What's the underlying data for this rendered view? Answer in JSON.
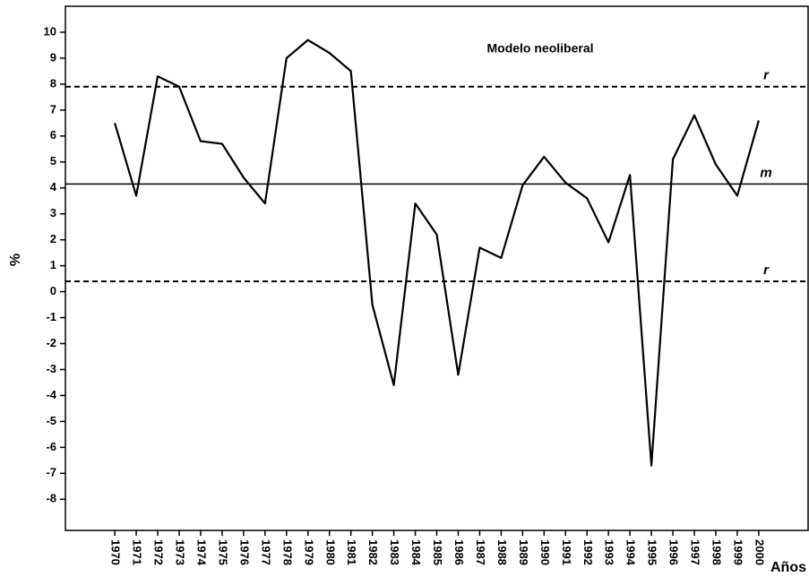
{
  "chart_data": {
    "type": "line",
    "title": "Modelo neoliberal",
    "ylabel": "%",
    "xlabel": "Años",
    "x": [
      1970,
      1971,
      1972,
      1973,
      1974,
      1975,
      1976,
      1977,
      1978,
      1979,
      1980,
      1981,
      1982,
      1983,
      1984,
      1985,
      1986,
      1987,
      1988,
      1989,
      1990,
      1991,
      1992,
      1993,
      1994,
      1995,
      1996,
      1997,
      1998,
      1999,
      2000
    ],
    "series": [
      {
        "color": "#000000",
        "values": [
          6.5,
          3.7,
          8.3,
          7.9,
          5.8,
          5.7,
          4.4,
          3.4,
          9.0,
          9.7,
          9.2,
          8.5,
          -0.5,
          -3.6,
          3.4,
          2.2,
          -3.2,
          1.7,
          1.3,
          4.1,
          5.2,
          4.2,
          3.6,
          1.9,
          4.5,
          -6.7,
          5.1,
          6.8,
          4.9,
          3.7,
          6.6
        ]
      }
    ],
    "reference_lines": [
      {
        "label": "r",
        "value": 7.9,
        "style": "dashed"
      },
      {
        "label": "m",
        "value": 4.15,
        "style": "solid"
      },
      {
        "label": "r",
        "value": 0.4,
        "style": "dashed"
      }
    ],
    "xlim": [
      1967.7,
      2002.3
    ],
    "xticks": [
      1970,
      1971,
      1972,
      1973,
      1974,
      1975,
      1976,
      1977,
      1978,
      1979,
      1980,
      1981,
      1982,
      1983,
      1984,
      1985,
      1986,
      1987,
      1988,
      1989,
      1990,
      1991,
      1992,
      1993,
      1994,
      1995,
      1996,
      1997,
      1998,
      1999,
      2000
    ],
    "ylim": [
      -9.2,
      11
    ],
    "yticks": [
      -8,
      -7,
      -6,
      -5,
      -4,
      -3,
      -2,
      -1,
      0,
      1,
      2,
      3,
      4,
      5,
      6,
      7,
      8,
      9,
      10
    ],
    "grid": false
  }
}
